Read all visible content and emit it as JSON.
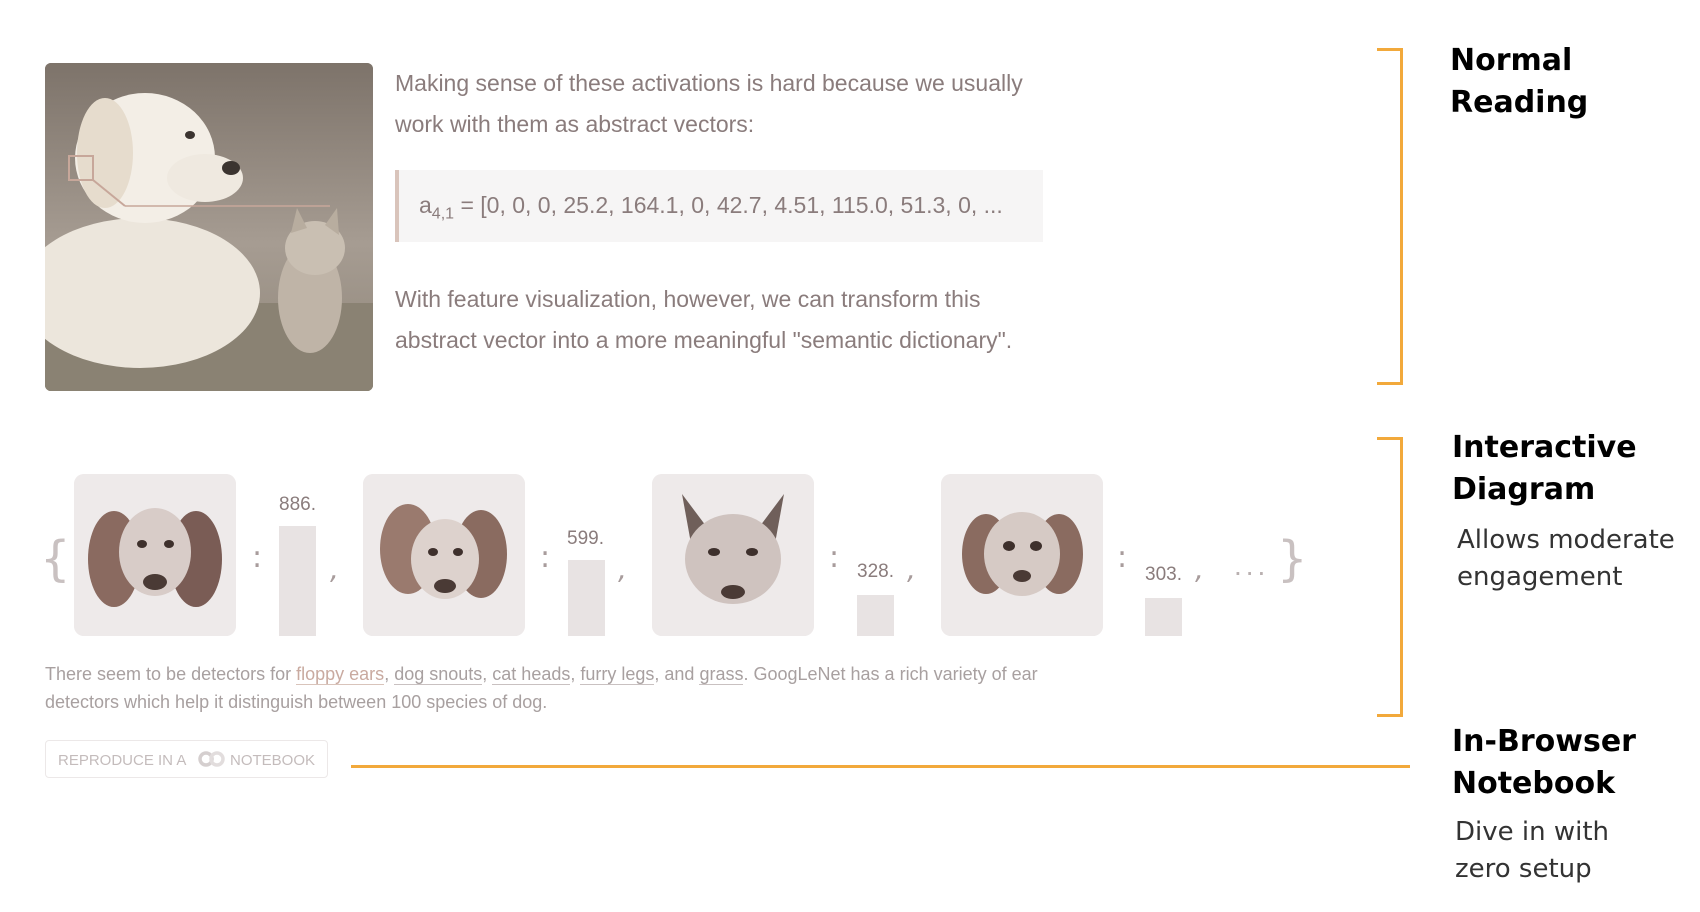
{
  "article": {
    "paragraph1": "Making sense of these activations is hard because we usually work with them as abstract vectors:",
    "vector": {
      "symbol": "a",
      "subscript": "4,1",
      "values": "= [0, 0, 0, 25.2, 164.1, 0, 42.7, 4.51, 115.0, 51.3, 0, ..."
    },
    "paragraph2": "With feature visualization, however, we can transform this abstract vector into a more meaningful \"semantic dictionary\"."
  },
  "dictionary": {
    "open_brace": "{",
    "close_brace": "}",
    "ellipsis": "...",
    "entries": [
      {
        "label": "886.",
        "icon": "beagle-feature-icon",
        "fraction": 1.0
      },
      {
        "label": "599.",
        "icon": "dog-feature-icon",
        "fraction": 0.676
      },
      {
        "label": "328.",
        "icon": "fox-feature-icon",
        "fraction": 0.37
      },
      {
        "label": "303.",
        "icon": "puppy-feature-icon",
        "fraction": 0.342
      }
    ]
  },
  "caption": {
    "prefix": "There seem to be detectors for ",
    "links": [
      "floppy ears",
      "dog snouts",
      "cat heads",
      "furry legs",
      "grass"
    ],
    "sep1": ", ",
    "sep_and": ", and ",
    "suffix": ". GoogLeNet has a rich variety of ear detectors which help it distinguish between 100 species of dog."
  },
  "notebook_button": {
    "before": "REPRODUCE IN A",
    "after": "NOTEBOOK",
    "icon": "colab-icon"
  },
  "annotations": {
    "normal_reading": {
      "title_line1": "Normal",
      "title_line2": "Reading"
    },
    "interactive": {
      "title_line1": "Interactive",
      "title_line2": "Diagram",
      "sub_line1": "Allows moderate",
      "sub_line2": "engagement"
    },
    "notebook": {
      "title_line1": "In-Browser",
      "title_line2": "Notebook",
      "sub_line1": "Dive in with",
      "sub_line2": "zero setup"
    }
  },
  "colors": {
    "accent": "#f2a93b",
    "muted_text": "#8a7c7c",
    "link_highlight": "#c9aaa0"
  }
}
